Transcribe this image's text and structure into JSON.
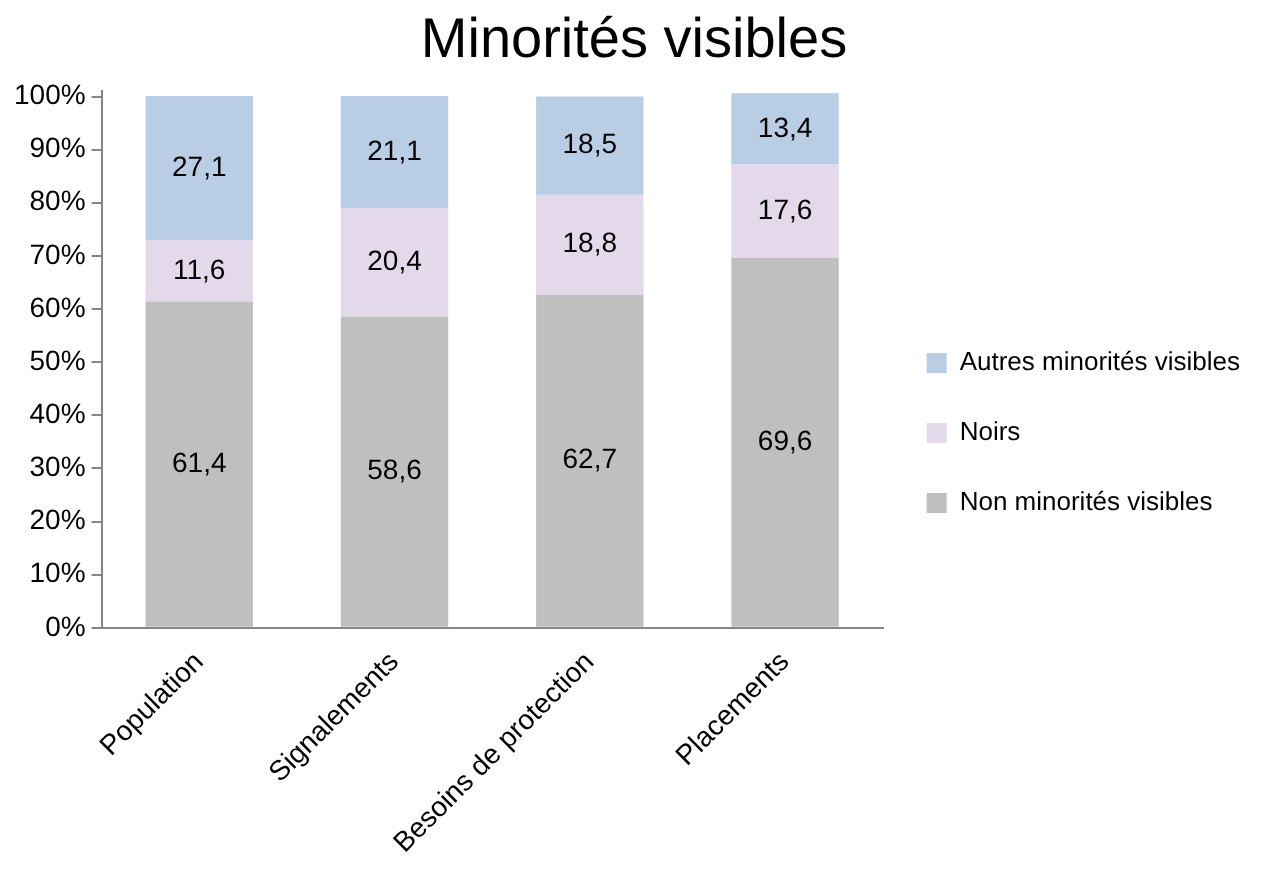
{
  "chart_data": {
    "type": "bar",
    "title": "Minorités visibles",
    "stacked": true,
    "legend": "right",
    "grid": false,
    "categories": [
      "Population",
      "Signalements",
      "Besoins de protection",
      "Placements"
    ],
    "ylim": [
      0,
      101
    ],
    "yticks": [
      {
        "value": 0,
        "label": "0%"
      },
      {
        "value": 10,
        "label": "10%"
      },
      {
        "value": 20,
        "label": "20%"
      },
      {
        "value": 30,
        "label": "30%"
      },
      {
        "value": 40,
        "label": "40%"
      },
      {
        "value": 50,
        "label": "50%"
      },
      {
        "value": 60,
        "label": "60%"
      },
      {
        "value": 70,
        "label": "70%"
      },
      {
        "value": 80,
        "label": "80%"
      },
      {
        "value": 90,
        "label": "90%"
      },
      {
        "value": 100,
        "label": "100%"
      }
    ],
    "series": [
      {
        "name": "Non minorités visibles",
        "color": "#bfbfbf",
        "values": [
          61.4,
          58.6,
          62.7,
          69.6
        ],
        "value_labels": [
          "61,4",
          "58,6",
          "62,7",
          "69,6"
        ]
      },
      {
        "name": "Noirs",
        "color": "#e4d9ea",
        "values": [
          11.6,
          20.4,
          18.8,
          17.6
        ],
        "value_labels": [
          "11,6",
          "20,4",
          "18,8",
          "17,6"
        ]
      },
      {
        "name": "Autres minorités visibles",
        "color": "#b9cde5",
        "values": [
          27.1,
          21.1,
          18.5,
          13.4
        ],
        "value_labels": [
          "27,1",
          "21,1",
          "18,5",
          "13,4"
        ]
      }
    ]
  }
}
